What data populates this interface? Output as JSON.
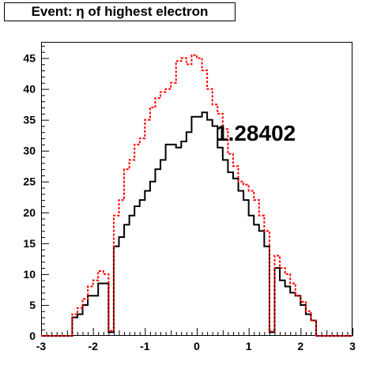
{
  "title": "Event: η of highest electron",
  "annotation": "1.28402",
  "chart_data": {
    "type": "step",
    "title": "Event: η of highest electron",
    "xlabel": "",
    "ylabel": "",
    "xlim": [
      -3,
      3
    ],
    "ylim": [
      0,
      47.5
    ],
    "x_ticks": [
      -3,
      -2,
      -1,
      0,
      1,
      2,
      3
    ],
    "y_ticks": [
      0,
      5,
      10,
      15,
      20,
      25,
      30,
      35,
      40,
      45
    ],
    "bin_edges_start": -3.0,
    "bin_width": 0.1,
    "grid": false,
    "series": [
      {
        "color": "#000000",
        "style": "solid",
        "values": [
          0,
          0,
          0,
          0,
          0,
          0,
          3,
          3.5,
          5,
          6.5,
          6.5,
          8.5,
          8.5,
          0.6,
          14.5,
          16,
          18,
          19.5,
          21,
          22,
          23.5,
          25,
          27,
          28.5,
          31,
          31,
          30.5,
          31.5,
          33,
          35.5,
          35.5,
          36.2,
          35,
          34,
          30.5,
          28.5,
          26.5,
          25.5,
          23.5,
          22,
          19.5,
          18,
          17,
          14.5,
          0.6,
          11,
          9,
          8,
          7,
          6.5,
          5,
          3.5,
          2.5,
          0,
          0,
          0,
          0,
          0,
          0,
          0
        ]
      },
      {
        "color": "#ff0000",
        "style": "dashed",
        "values": [
          0,
          0,
          0,
          0,
          0,
          0,
          3.5,
          4.5,
          6,
          8,
          9,
          10.5,
          10,
          0.8,
          19.5,
          22,
          27,
          28.5,
          31,
          32,
          35,
          37,
          38.5,
          39.5,
          40,
          41,
          44.5,
          45,
          44,
          45.5,
          45,
          43,
          40,
          37.5,
          36,
          33.5,
          29.5,
          27.5,
          25,
          24.5,
          23.5,
          22,
          19.5,
          17,
          0.8,
          13,
          11,
          10,
          8.5,
          6.5,
          5.5,
          4,
          2.5,
          0,
          0,
          0,
          0,
          0,
          0,
          0
        ]
      }
    ]
  }
}
